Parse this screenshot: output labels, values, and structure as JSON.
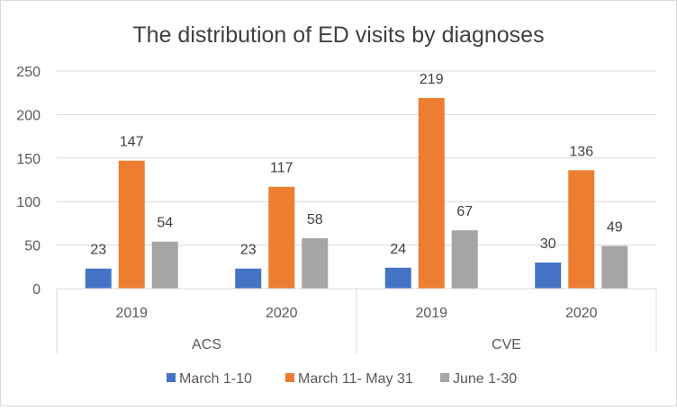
{
  "chart_data": {
    "type": "bar",
    "title": "The distribution of ED visits by diagnoses",
    "xlabel": "",
    "ylabel": "",
    "ylim": [
      0,
      250
    ],
    "yticks": [
      0,
      50,
      100,
      150,
      200,
      250
    ],
    "grid": true,
    "legend_position": "bottom",
    "groups": [
      {
        "label": "ACS",
        "categories": [
          "2019",
          "2020"
        ]
      },
      {
        "label": "CVE",
        "categories": [
          "2019",
          "2020"
        ]
      }
    ],
    "categories": [
      "ACS 2019",
      "ACS 2020",
      "CVE 2019",
      "CVE 2020"
    ],
    "series": [
      {
        "name": "March 1-10",
        "color": "#4472c4",
        "values": [
          23,
          23,
          24,
          30
        ]
      },
      {
        "name": "March 11- May 31",
        "color": "#ed7d31",
        "values": [
          147,
          117,
          219,
          136
        ]
      },
      {
        "name": "June 1-30",
        "color": "#a5a5a5",
        "values": [
          54,
          58,
          67,
          49
        ]
      }
    ]
  }
}
